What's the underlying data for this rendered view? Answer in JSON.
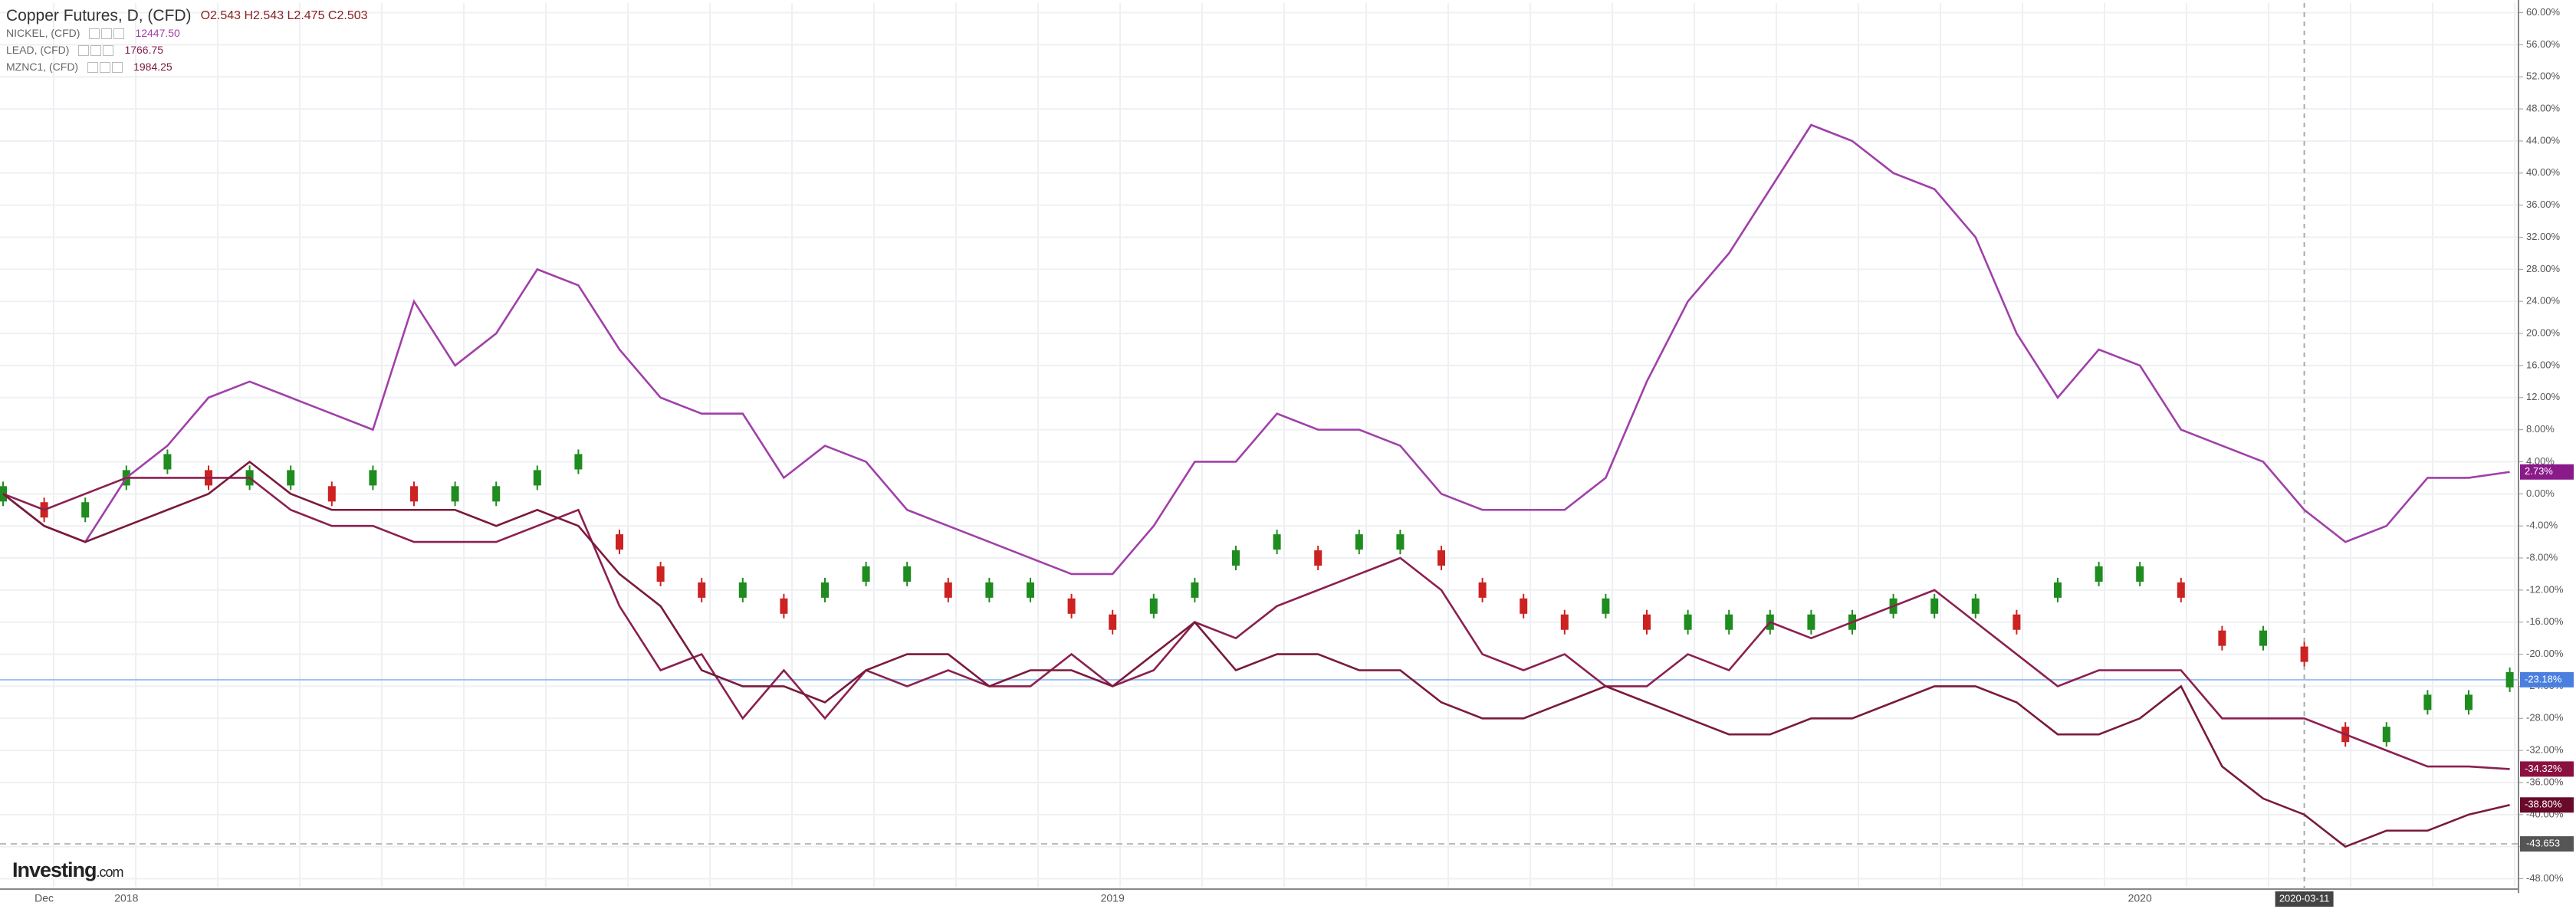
{
  "chart_data": {
    "type": "line",
    "title": "Copper Futures, D, (CFD)",
    "ohlc": "O2.543 H2.543 L2.475 C2.503",
    "brand": "Investing",
    "brand_suffix": ".com",
    "categories": [
      null,
      "Dec",
      null,
      "2018",
      null,
      null,
      null,
      null,
      null,
      null,
      null,
      null,
      null,
      null,
      null,
      null,
      null,
      null,
      null,
      null,
      null,
      null,
      null,
      null,
      null,
      null,
      null,
      "2019",
      null,
      null,
      null,
      null,
      null,
      null,
      null,
      null,
      null,
      null,
      null,
      null,
      null,
      null,
      null,
      null,
      null,
      null,
      null,
      null,
      null,
      null,
      null,
      null,
      "2020",
      null,
      null,
      null,
      "2020-03-11",
      null,
      null,
      null,
      null,
      null
    ],
    "highlight_category": 56,
    "series": [
      {
        "name": "Copper Futures, D, (CFD)",
        "style": "candles",
        "color": "#1e8c1e",
        "down_color": "#cc2222",
        "values": [
          0,
          -2,
          -2,
          2,
          4,
          2,
          2,
          2,
          0,
          2,
          0,
          0,
          0,
          2,
          4,
          -6,
          -10,
          -12,
          -12,
          -14,
          -12,
          -10,
          -10,
          -12,
          -12,
          -12,
          -14,
          -16,
          -14,
          -12,
          -8,
          -6,
          -8,
          -6,
          -6,
          -8,
          -12,
          -14,
          -16,
          -14,
          -16,
          -16,
          -16,
          -16,
          -16,
          -16,
          -14,
          -14,
          -14,
          -16,
          -12,
          -10,
          -10,
          -12,
          -18,
          -18,
          -20,
          -30,
          -30,
          -26,
          -26,
          -23.18
        ],
        "last_label": "-23.18%",
        "label_color": "#4a7fe0"
      },
      {
        "name": "NICKEL, (CFD)",
        "price": "12447.50",
        "style": "line",
        "color": "#a040a8",
        "values": [
          0,
          -4,
          -6,
          2,
          6,
          12,
          14,
          12,
          10,
          8,
          24,
          16,
          20,
          28,
          26,
          18,
          12,
          10,
          10,
          2,
          6,
          4,
          -2,
          -4,
          -6,
          -8,
          -10,
          -10,
          -4,
          4,
          4,
          10,
          8,
          8,
          6,
          0,
          -2,
          -2,
          -2,
          2,
          14,
          24,
          30,
          38,
          46,
          44,
          40,
          38,
          32,
          20,
          12,
          18,
          16,
          8,
          6,
          4,
          -2,
          -6,
          -4,
          2,
          2,
          2.73
        ],
        "last_label": "2.73%",
        "label_color": "#8a1a8a"
      },
      {
        "name": "LEAD, (CFD)",
        "price": "1766.75",
        "style": "line",
        "color": "#8b2050",
        "values": [
          0,
          -2,
          0,
          2,
          2,
          2,
          2,
          -2,
          -4,
          -4,
          -6,
          -6,
          -6,
          -4,
          -2,
          -14,
          -22,
          -20,
          -28,
          -22,
          -28,
          -22,
          -24,
          -22,
          -24,
          -24,
          -20,
          -24,
          -22,
          -16,
          -18,
          -14,
          -12,
          -10,
          -8,
          -12,
          -20,
          -22,
          -20,
          -24,
          -24,
          -20,
          -22,
          -16,
          -18,
          -16,
          -14,
          -12,
          -16,
          -20,
          -24,
          -22,
          -22,
          -22,
          -28,
          -28,
          -28,
          -30,
          -32,
          -34,
          -34,
          -34.32
        ],
        "last_label": "-34.32%",
        "label_color": "#8b1040"
      },
      {
        "name": "MZNC1, (CFD)",
        "price": "1984.25",
        "style": "line",
        "color": "#7a1a3a",
        "values": [
          0,
          -4,
          -6,
          -4,
          -2,
          0,
          4,
          0,
          -2,
          -2,
          -2,
          -2,
          -4,
          -2,
          -4,
          -10,
          -14,
          -22,
          -24,
          -24,
          -26,
          -22,
          -20,
          -20,
          -24,
          -22,
          -22,
          -24,
          -20,
          -16,
          -22,
          -20,
          -20,
          -22,
          -22,
          -26,
          -28,
          -28,
          -26,
          -24,
          -26,
          -28,
          -30,
          -30,
          -28,
          -28,
          -26,
          -24,
          -24,
          -26,
          -30,
          -30,
          -28,
          -24,
          -34,
          -38,
          -40,
          -44,
          -42,
          -42,
          -40,
          -38.8
        ],
        "last_label": "-38.80%",
        "label_color": "#6a0a2a"
      }
    ],
    "ref_line": -43.653,
    "ylim": [
      -49,
      61.2
    ],
    "yticks": [
      {
        "value": 60,
        "label": "60.00%"
      },
      {
        "value": 56,
        "label": "56.00%"
      },
      {
        "value": 52,
        "label": "52.00%"
      },
      {
        "value": 48,
        "label": "48.00%"
      },
      {
        "value": 44,
        "label": "44.00%"
      },
      {
        "value": 40,
        "label": "40.00%"
      },
      {
        "value": 36,
        "label": "36.00%"
      },
      {
        "value": 32,
        "label": "32.00%"
      },
      {
        "value": 28,
        "label": "28.00%"
      },
      {
        "value": 24,
        "label": "24.00%"
      },
      {
        "value": 20,
        "label": "20.00%"
      },
      {
        "value": 16,
        "label": "16.00%"
      },
      {
        "value": 12,
        "label": "12.00%"
      },
      {
        "value": 8,
        "label": "8.00%"
      },
      {
        "value": 4,
        "label": "4.00%"
      },
      {
        "value": 0,
        "label": "0.00%"
      },
      {
        "value": -4,
        "label": "-4.00%"
      },
      {
        "value": -8,
        "label": "-8.00%"
      },
      {
        "value": -12,
        "label": "-12.00%"
      },
      {
        "value": -16,
        "label": "-16.00%"
      },
      {
        "value": -20,
        "label": "-20.00%"
      },
      {
        "value": -24,
        "label": "-24.00%"
      },
      {
        "value": -28,
        "label": "-28.00%"
      },
      {
        "value": -32,
        "label": "-32.00%"
      },
      {
        "value": -36,
        "label": "-36.00%"
      },
      {
        "value": -40,
        "label": "-40.00%"
      },
      {
        "value": -44,
        "label": "-44.00%"
      },
      {
        "value": -48,
        "label": "-48.00%"
      }
    ],
    "grid": true
  }
}
